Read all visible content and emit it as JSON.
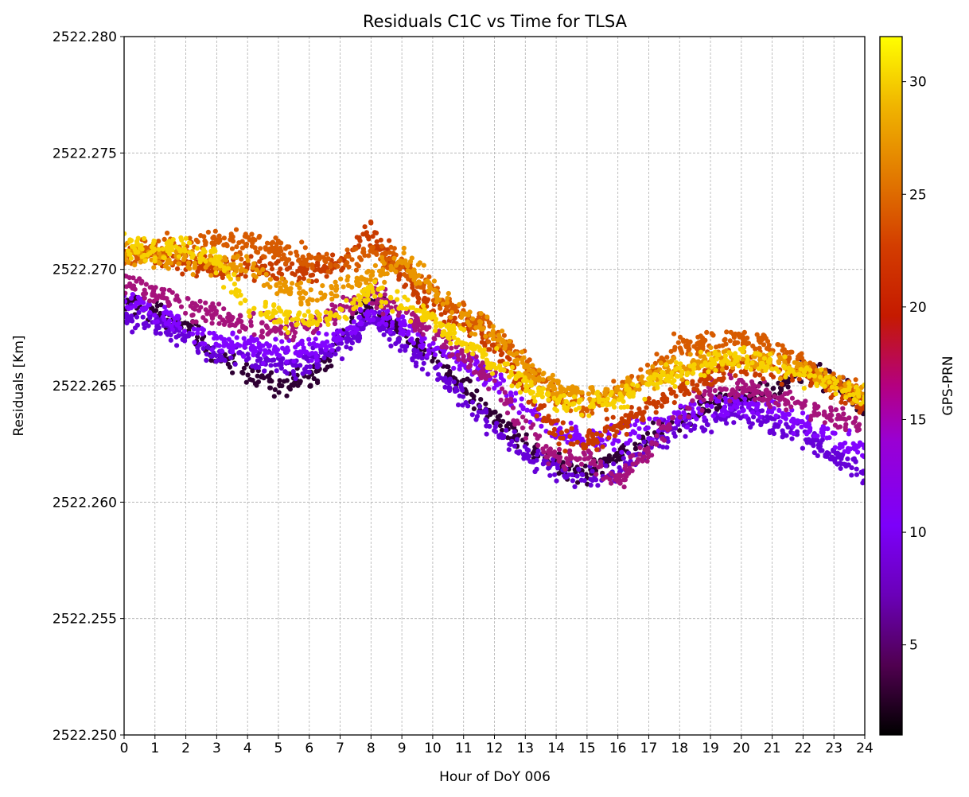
{
  "chart_data": {
    "type": "scatter",
    "title": "Residuals C1C vs Time for TLSA",
    "xlabel": "Hour of DoY 006",
    "ylabel": "Residuals [Km]",
    "xlim": [
      0,
      24
    ],
    "ylim": [
      2522.25,
      2522.28
    ],
    "x_ticks": [
      "0",
      "1",
      "2",
      "3",
      "4",
      "5",
      "6",
      "7",
      "8",
      "9",
      "10",
      "11",
      "12",
      "13",
      "14",
      "15",
      "16",
      "17",
      "18",
      "19",
      "20",
      "21",
      "22",
      "23",
      "24"
    ],
    "y_ticks": [
      "2522.250",
      "2522.255",
      "2522.260",
      "2522.265",
      "2522.270",
      "2522.275",
      "2522.280"
    ],
    "grid": true,
    "colorbar": {
      "label": "GPS-PRN",
      "colormap": "gnuplot",
      "range": [
        1,
        32
      ],
      "ticks": [
        "5",
        "10",
        "15",
        "20",
        "25",
        "30"
      ],
      "tick_values": [
        5,
        10,
        15,
        20,
        25,
        30
      ]
    },
    "series": [
      {
        "prn": 2,
        "points": [
          [
            0,
            2522.2685
          ],
          [
            1,
            2522.2683
          ],
          [
            2,
            2522.2676
          ],
          [
            3,
            2522.2662
          ],
          [
            4,
            2522.2655
          ],
          [
            5,
            2522.2649
          ],
          [
            6,
            2522.2653
          ],
          [
            7,
            2522.2668
          ],
          [
            8,
            2522.2687
          ],
          [
            9,
            2522.2673
          ],
          [
            10,
            2522.2662
          ],
          [
            11,
            2522.2649
          ],
          [
            12,
            2522.2636
          ],
          [
            13,
            2522.2625
          ],
          [
            14,
            2522.2616
          ],
          [
            15,
            2522.2613
          ],
          [
            16,
            2522.2619
          ],
          [
            17,
            2522.2628
          ],
          [
            18,
            2522.2637
          ],
          [
            19,
            2522.2642
          ],
          [
            20,
            2522.2646
          ],
          [
            21,
            2522.2648
          ],
          [
            22,
            2522.2658
          ],
          [
            23,
            2522.2652
          ],
          [
            24,
            2522.264
          ]
        ]
      },
      {
        "prn": 6,
        "points": [
          [
            0,
            2522.268
          ],
          [
            1,
            2522.2676
          ],
          [
            2,
            2522.2671
          ],
          [
            3,
            2522.2663
          ],
          [
            4,
            2522.2662
          ],
          [
            5,
            2522.2659
          ],
          [
            6,
            2522.266
          ],
          [
            7,
            2522.2667
          ],
          [
            8,
            2522.2679
          ],
          [
            9,
            2522.2668
          ],
          [
            10,
            2522.2657
          ],
          [
            11,
            2522.2644
          ],
          [
            12,
            2522.2632
          ],
          [
            13,
            2522.262
          ],
          [
            14,
            2522.2614
          ],
          [
            15,
            2522.261
          ],
          [
            16,
            2522.2614
          ],
          [
            17,
            2522.2624
          ],
          [
            18,
            2522.2633
          ],
          [
            19,
            2522.2635
          ],
          [
            20,
            2522.2639
          ],
          [
            21,
            2522.2634
          ],
          [
            22,
            2522.2628
          ],
          [
            23,
            2522.262
          ],
          [
            24,
            2522.2611
          ]
        ]
      },
      {
        "prn": 9,
        "points": [
          [
            0,
            2522.2689
          ],
          [
            1,
            2522.2681
          ],
          [
            2,
            2522.2675
          ],
          [
            3,
            2522.2669
          ],
          [
            4,
            2522.2667
          ],
          [
            5,
            2522.2665
          ],
          [
            6,
            2522.2666
          ],
          [
            7,
            2522.267
          ],
          [
            8,
            2522.2683
          ],
          [
            9,
            2522.2676
          ],
          [
            10,
            2522.2666
          ],
          [
            11,
            2522.266
          ],
          [
            12,
            2522.2652
          ],
          [
            13,
            2522.2641
          ],
          [
            14,
            2522.2631
          ],
          [
            15,
            2522.2627
          ],
          [
            16,
            2522.2627
          ],
          [
            17,
            2522.2632
          ],
          [
            18,
            2522.2637
          ],
          [
            19,
            2522.2641
          ],
          [
            20,
            2522.2643
          ],
          [
            21,
            2522.2639
          ],
          [
            22,
            2522.2634
          ],
          [
            23,
            2522.2628
          ],
          [
            24,
            2522.2622
          ]
        ]
      },
      {
        "prn": 14,
        "points": [
          [
            0,
            2522.2695
          ],
          [
            1,
            2522.269
          ],
          [
            2,
            2522.2684
          ],
          [
            3,
            2522.268
          ],
          [
            4,
            2522.2676
          ],
          [
            5,
            2522.2674
          ],
          [
            6,
            2522.2676
          ],
          [
            7,
            2522.2682
          ],
          [
            8,
            2522.269
          ],
          [
            9,
            2522.2683
          ],
          [
            10,
            2522.2672
          ],
          [
            11,
            2522.2663
          ],
          [
            12,
            2522.2652
          ],
          [
            13,
            2522.2631
          ],
          [
            14,
            2522.2619
          ],
          [
            15,
            2522.262
          ],
          [
            16,
            2522.2609
          ],
          [
            17,
            2522.2622
          ],
          [
            18,
            2522.2639
          ],
          [
            19,
            2522.2647
          ],
          [
            20,
            2522.2649
          ],
          [
            21,
            2522.2645
          ],
          [
            22,
            2522.2642
          ],
          [
            23,
            2522.2637
          ],
          [
            24,
            2522.2632
          ]
        ]
      },
      {
        "prn": 20,
        "points": [
          [
            0,
            2522.2708
          ],
          [
            1,
            2522.2706
          ],
          [
            2,
            2522.2702
          ],
          [
            3,
            2522.27
          ],
          [
            4,
            2522.2701
          ],
          [
            5,
            2522.27
          ],
          [
            6,
            2522.2699
          ],
          [
            7,
            2522.2703
          ],
          [
            8,
            2522.2715
          ],
          [
            9,
            2522.2698
          ],
          [
            10,
            2522.2684
          ],
          [
            11,
            2522.2677
          ],
          [
            12,
            2522.2667
          ],
          [
            13,
            2522.2649
          ],
          [
            14,
            2522.263
          ],
          [
            15,
            2522.2625
          ],
          [
            16,
            2522.2633
          ],
          [
            17,
            2522.264
          ],
          [
            18,
            2522.2648
          ],
          [
            19,
            2522.2654
          ],
          [
            20,
            2522.266
          ],
          [
            21,
            2522.2657
          ],
          [
            22,
            2522.2655
          ],
          [
            23,
            2522.2648
          ],
          [
            24,
            2522.2641
          ]
        ]
      },
      {
        "prn": 23,
        "points": [
          [
            0,
            2522.2705
          ],
          [
            1,
            2522.2708
          ],
          [
            2,
            2522.2709
          ],
          [
            3,
            2522.2712
          ],
          [
            4,
            2522.2711
          ],
          [
            5,
            2522.2708
          ],
          [
            6,
            2522.2705
          ],
          [
            7,
            2522.2703
          ],
          [
            8,
            2522.2707
          ],
          [
            9,
            2522.2703
          ],
          [
            10,
            2522.269
          ],
          [
            11,
            2522.2682
          ],
          [
            12,
            2522.2673
          ],
          [
            13,
            2522.266
          ],
          [
            14,
            2522.2645
          ],
          [
            15,
            2522.264
          ],
          [
            16,
            2522.2648
          ],
          [
            17,
            2522.2655
          ],
          [
            18,
            2522.2667
          ],
          [
            19,
            2522.2668
          ],
          [
            20,
            2522.267
          ],
          [
            21,
            2522.2667
          ],
          [
            22,
            2522.266
          ],
          [
            23,
            2522.2652
          ],
          [
            24,
            2522.2645
          ]
        ]
      },
      {
        "prn": 27,
        "points": [
          [
            0,
            2522.2708
          ],
          [
            1,
            2522.2704
          ],
          [
            2,
            2522.2704
          ],
          [
            3,
            2522.2703
          ],
          [
            4,
            2522.27
          ],
          [
            5,
            2522.2693
          ],
          [
            6,
            2522.2689
          ],
          [
            7,
            2522.2692
          ],
          [
            8,
            2522.2698
          ],
          [
            9,
            2522.2704
          ],
          [
            10,
            2522.2691
          ],
          [
            11,
            2522.268
          ],
          [
            12,
            2522.2672
          ],
          [
            13,
            2522.2658
          ],
          [
            14,
            2522.2649
          ],
          [
            15,
            2522.2646
          ],
          [
            16,
            2522.2648
          ],
          [
            17,
            2522.2654
          ],
          [
            18,
            2522.2658
          ],
          [
            19,
            2522.2661
          ],
          [
            20,
            2522.2662
          ],
          [
            21,
            2522.266
          ],
          [
            22,
            2522.2656
          ],
          [
            23,
            2522.2651
          ],
          [
            24,
            2522.2645
          ]
        ]
      },
      {
        "prn": 30,
        "points": [
          [
            0,
            2522.2711
          ],
          [
            1,
            2522.2708
          ],
          [
            2,
            2522.271
          ],
          [
            3,
            2522.2703
          ],
          [
            4,
            2522.2684
          ],
          [
            5,
            2522.268
          ],
          [
            6,
            2522.2677
          ],
          [
            7,
            2522.2682
          ],
          [
            8,
            2522.269
          ],
          [
            9,
            2522.2686
          ],
          [
            10,
            2522.2678
          ],
          [
            11,
            2522.267
          ],
          [
            12,
            2522.266
          ],
          [
            13,
            2522.2651
          ],
          [
            14,
            2522.2642
          ],
          [
            15,
            2522.264
          ],
          [
            16,
            2522.2645
          ],
          [
            17,
            2522.265
          ],
          [
            18,
            2522.2656
          ],
          [
            19,
            2522.266
          ],
          [
            20,
            2522.2662
          ],
          [
            21,
            2522.2659
          ],
          [
            22,
            2522.2655
          ],
          [
            23,
            2522.265
          ],
          [
            24,
            2522.2645
          ]
        ]
      }
    ]
  }
}
